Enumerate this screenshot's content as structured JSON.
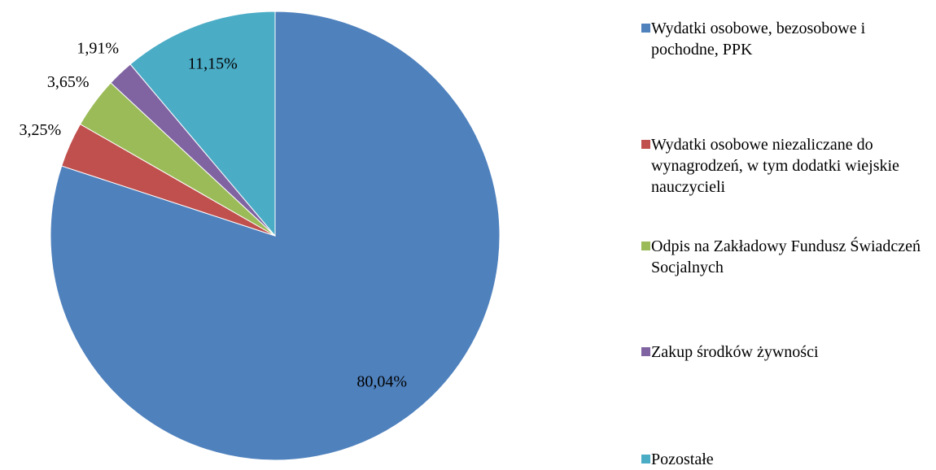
{
  "chart_data": {
    "type": "pie",
    "categories": [
      "Wydatki osobowe, bezosobowe i pochodne, PPK",
      "Wydatki osobowe niezaliczane do wynagrodzeń, w tym dodatki wiejskie nauczycieli",
      "Odpis na Zakładowy Fundusz Świadczeń Socjalnych",
      "Zakup środków żywności",
      "Pozostałe"
    ],
    "values": [
      80.04,
      3.25,
      3.65,
      1.91,
      11.15
    ],
    "value_labels": [
      "80,04%",
      "3,25%",
      "3,65%",
      "1,91%",
      "11,15%"
    ],
    "colors": [
      "#4f81bd",
      "#c0504d",
      "#9bbb59",
      "#8064a2",
      "#4bacc6"
    ],
    "legend": "right"
  }
}
